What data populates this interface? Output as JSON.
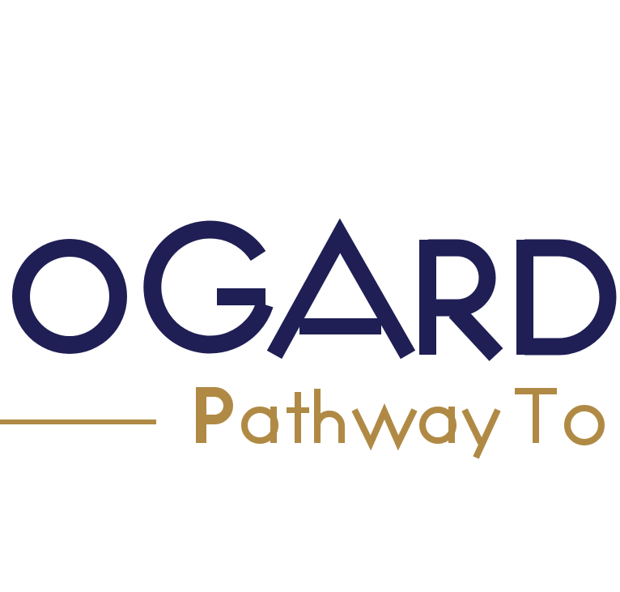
{
  "logo": {
    "wordmark": "OGARD",
    "tagline": "Pathway To",
    "colors": {
      "primary": "#1f1f55",
      "accent": "#b08a45",
      "background": "#ffffff"
    }
  }
}
